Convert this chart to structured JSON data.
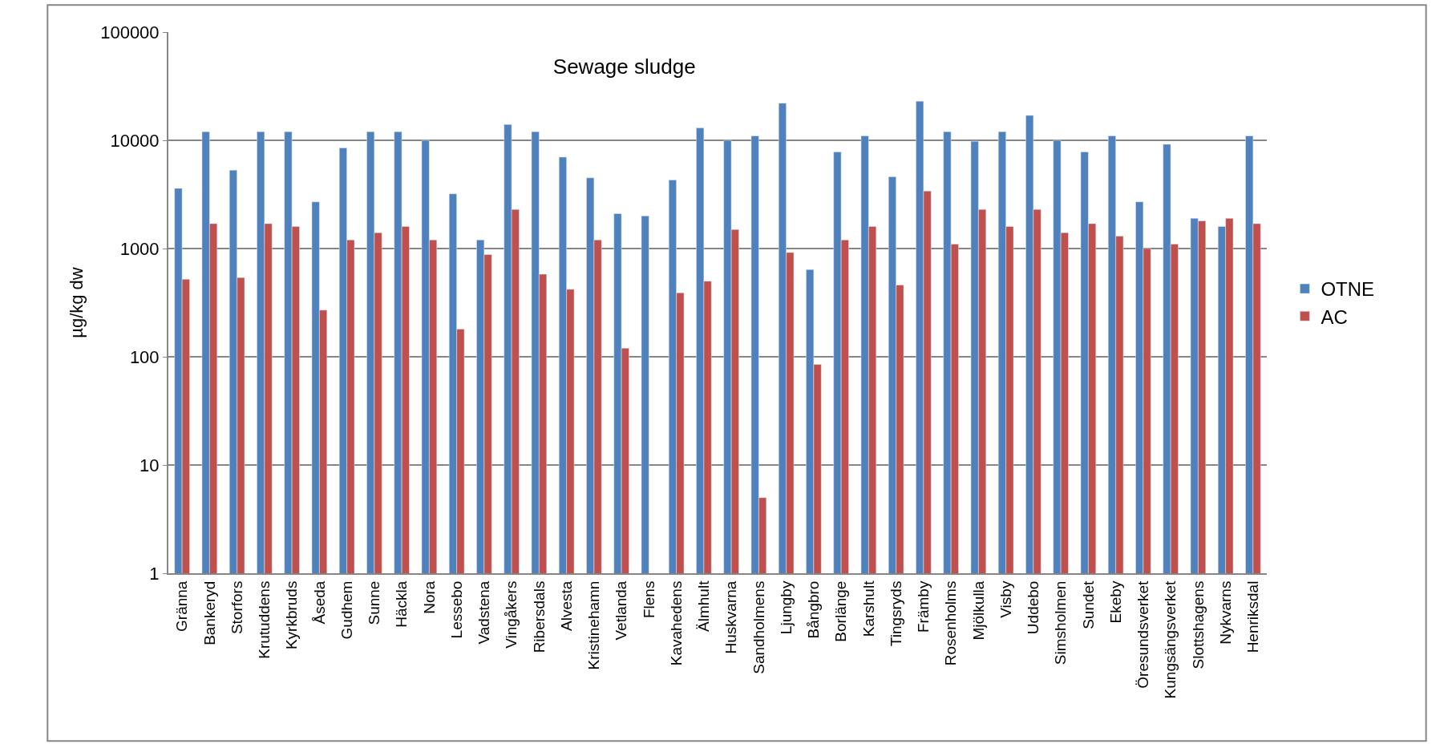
{
  "chart_data": {
    "type": "bar",
    "title": "Sewage sludge",
    "ylabel": "µg/kg dw",
    "categories": [
      "Gränna",
      "Bankeryd",
      "Storfors",
      "Krutuddens",
      "Kyrkbruds",
      "Åseda",
      "Gudhem",
      "Sunne",
      "Häckla",
      "Nora",
      "Lessebo",
      "Vadstena",
      "Vingåkers",
      "Ribersdals",
      "Alvesta",
      "Kristinehamn",
      "Vetlanda",
      "Flens",
      "Kavahedens",
      "Älmhult",
      "Huskvarna",
      "Sandholmens",
      "Ljungby",
      "Bångbro",
      "Borlänge",
      "Karshult",
      "Tingsryds",
      "Främby",
      "Rosenholms",
      "Mjölkulla",
      "Visby",
      "Uddebo",
      "Simsholmen",
      "Sundet",
      "Ekeby",
      "Öresundsverket",
      "Kungsängsverket",
      "Slottshagens",
      "Nykvarns",
      "Henriksdal"
    ],
    "series": [
      {
        "name": "OTNE",
        "color": "#4f81bd",
        "values": [
          3600,
          12000,
          5300,
          12000,
          12000,
          2700,
          8500,
          12000,
          12000,
          10000,
          3200,
          1200,
          14000,
          12000,
          7000,
          4500,
          2100,
          2000,
          4300,
          13000,
          10000,
          11000,
          22000,
          640,
          7800,
          11000,
          4600,
          23000,
          12000,
          9800,
          12000,
          17000,
          10000,
          7800,
          11000,
          2700,
          9200,
          1900,
          1600,
          11000
        ]
      },
      {
        "name": "AC",
        "color": "#c0504d",
        "values": [
          520,
          1700,
          540,
          1700,
          1600,
          270,
          1200,
          1400,
          1600,
          1200,
          180,
          880,
          2300,
          580,
          420,
          1200,
          120,
          null,
          390,
          500,
          1500,
          5,
          920,
          85,
          1200,
          1600,
          460,
          3400,
          1100,
          2300,
          1600,
          2300,
          1400,
          1700,
          1300,
          1000,
          1100,
          1800,
          1900,
          1700
        ]
      }
    ],
    "log": "y",
    "ylim": [
      1,
      100000
    ],
    "yticks": [
      1,
      10,
      100,
      1000,
      10000,
      100000
    ],
    "grid": "y",
    "legend": "right"
  }
}
